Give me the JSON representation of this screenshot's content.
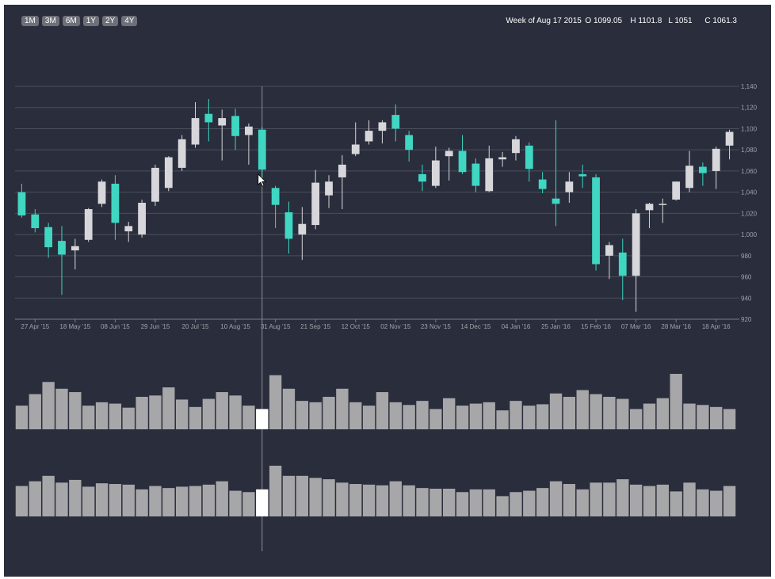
{
  "range_buttons": [
    "1M",
    "3M",
    "6M",
    "1Y",
    "2Y",
    "4Y"
  ],
  "readout": {
    "week": "Week of Aug 17 2015",
    "open": "O 1099.05",
    "high": "H 1101.8",
    "low": "L 1051",
    "close": "C 1061.3"
  },
  "colors": {
    "background": "#2a2d3b",
    "up": "#d7d7db",
    "down": "#3fd6c2",
    "grid": "#4b4e5c",
    "volume": "#a7a7a9",
    "highlight": "#ffffff",
    "tick_text": "#a0a2aa"
  },
  "chart_data": [
    {
      "type": "candlestick",
      "x_tick_labels": [
        "27 Apr '15",
        "18 May '15",
        "08 Jun '15",
        "29 Jun '15",
        "20 Jul '15",
        "10 Aug '15",
        "31 Aug '15",
        "21 Sep '15",
        "12 Oct '15",
        "02 Nov '15",
        "23 Nov '15",
        "14 Dec '15",
        "04 Jan '16",
        "25 Jan '16",
        "15 Feb '16",
        "07 Mar '16",
        "28 Mar '16",
        "18 Apr '16"
      ],
      "y_ticks": [
        920,
        940,
        960,
        980,
        1000,
        1020,
        1040,
        1060,
        1080,
        1100,
        1120,
        1140
      ],
      "ylim": [
        920,
        1140
      ],
      "grid": true,
      "crosshair_index": 18,
      "candles": [
        {
          "o": 1040,
          "h": 1048,
          "l": 1016,
          "c": 1018
        },
        {
          "o": 1019,
          "h": 1024,
          "l": 1002,
          "c": 1006
        },
        {
          "o": 1007,
          "h": 1011,
          "l": 978,
          "c": 988
        },
        {
          "o": 994,
          "h": 1008,
          "l": 943,
          "c": 981
        },
        {
          "o": 985,
          "h": 996,
          "l": 967,
          "c": 989
        },
        {
          "o": 995,
          "h": 1025,
          "l": 993,
          "c": 1024
        },
        {
          "o": 1029,
          "h": 1052,
          "l": 1026,
          "c": 1050
        },
        {
          "o": 1048,
          "h": 1056,
          "l": 995,
          "c": 1011
        },
        {
          "o": 1003,
          "h": 1012,
          "l": 993,
          "c": 1008
        },
        {
          "o": 1000,
          "h": 1033,
          "l": 997,
          "c": 1030
        },
        {
          "o": 1031,
          "h": 1066,
          "l": 1027,
          "c": 1063
        },
        {
          "o": 1044,
          "h": 1074,
          "l": 1041,
          "c": 1073
        },
        {
          "o": 1063,
          "h": 1094,
          "l": 1060,
          "c": 1090
        },
        {
          "o": 1085,
          "h": 1125,
          "l": 1082,
          "c": 1110
        },
        {
          "o": 1114,
          "h": 1128,
          "l": 1088,
          "c": 1106
        },
        {
          "o": 1103,
          "h": 1118,
          "l": 1070,
          "c": 1110
        },
        {
          "o": 1112,
          "h": 1119,
          "l": 1080,
          "c": 1093
        },
        {
          "o": 1094,
          "h": 1105,
          "l": 1066,
          "c": 1102
        },
        {
          "o": 1099.05,
          "h": 1101.8,
          "l": 1051,
          "c": 1061.3
        },
        {
          "o": 1044,
          "h": 1046,
          "l": 1006,
          "c": 1028
        },
        {
          "o": 1021,
          "h": 1031,
          "l": 982,
          "c": 996
        },
        {
          "o": 1000,
          "h": 1026,
          "l": 976,
          "c": 1010
        },
        {
          "o": 1009,
          "h": 1061,
          "l": 1005,
          "c": 1049
        },
        {
          "o": 1037,
          "h": 1056,
          "l": 1025,
          "c": 1050
        },
        {
          "o": 1054,
          "h": 1075,
          "l": 1024,
          "c": 1066
        },
        {
          "o": 1076,
          "h": 1106,
          "l": 1074,
          "c": 1085
        },
        {
          "o": 1088,
          "h": 1108,
          "l": 1085,
          "c": 1098
        },
        {
          "o": 1098,
          "h": 1108,
          "l": 1086,
          "c": 1106
        },
        {
          "o": 1113,
          "h": 1123,
          "l": 1088,
          "c": 1100
        },
        {
          "o": 1094,
          "h": 1098,
          "l": 1069,
          "c": 1080
        },
        {
          "o": 1057,
          "h": 1066,
          "l": 1041,
          "c": 1050
        },
        {
          "o": 1046,
          "h": 1083,
          "l": 1044,
          "c": 1070
        },
        {
          "o": 1074,
          "h": 1082,
          "l": 1051,
          "c": 1079
        },
        {
          "o": 1079,
          "h": 1094,
          "l": 1057,
          "c": 1059
        },
        {
          "o": 1067,
          "h": 1072,
          "l": 1040,
          "c": 1046
        },
        {
          "o": 1041,
          "h": 1084,
          "l": 1040,
          "c": 1072
        },
        {
          "o": 1071,
          "h": 1078,
          "l": 1064,
          "c": 1073
        },
        {
          "o": 1077,
          "h": 1093,
          "l": 1070,
          "c": 1090
        },
        {
          "o": 1084,
          "h": 1087,
          "l": 1050,
          "c": 1062
        },
        {
          "o": 1052,
          "h": 1059,
          "l": 1039,
          "c": 1043
        },
        {
          "o": 1034,
          "h": 1108,
          "l": 1008,
          "c": 1029
        },
        {
          "o": 1040,
          "h": 1059,
          "l": 1030,
          "c": 1050
        },
        {
          "o": 1057,
          "h": 1066,
          "l": 1044,
          "c": 1055
        },
        {
          "o": 1054,
          "h": 1057,
          "l": 966,
          "c": 972
        },
        {
          "o": 980,
          "h": 993,
          "l": 958,
          "c": 990
        },
        {
          "o": 983,
          "h": 996,
          "l": 938,
          "c": 961
        },
        {
          "o": 961,
          "h": 1024,
          "l": 927,
          "c": 1020
        },
        {
          "o": 1023,
          "h": 1030,
          "l": 1006,
          "c": 1029
        },
        {
          "o": 1029,
          "h": 1034,
          "l": 1011,
          "c": 1029
        },
        {
          "o": 1033,
          "h": 1050,
          "l": 1032,
          "c": 1050
        },
        {
          "o": 1044,
          "h": 1079,
          "l": 1040,
          "c": 1065
        },
        {
          "o": 1064,
          "h": 1068,
          "l": 1046,
          "c": 1058
        },
        {
          "o": 1060,
          "h": 1083,
          "l": 1043,
          "c": 1081
        },
        {
          "o": 1084,
          "h": 1099,
          "l": 1071,
          "c": 1097
        }
      ]
    },
    {
      "type": "bar",
      "name": "volume-upper",
      "highlight_index": 18,
      "values": [
        35,
        52,
        70,
        60,
        55,
        35,
        40,
        38,
        32,
        48,
        50,
        62,
        44,
        33,
        45,
        55,
        50,
        35,
        30,
        80,
        60,
        42,
        40,
        48,
        60,
        40,
        35,
        55,
        40,
        36,
        42,
        30,
        46,
        35,
        38,
        40,
        28,
        42,
        35,
        37,
        53,
        48,
        58,
        52,
        48,
        45,
        30,
        38,
        46,
        82,
        38,
        36,
        33,
        30
      ]
    },
    {
      "type": "bar",
      "name": "volume-lower",
      "highlight_index": 18,
      "values": [
        45,
        52,
        60,
        50,
        54,
        44,
        49,
        48,
        47,
        40,
        45,
        42,
        44,
        45,
        47,
        52,
        38,
        36,
        40,
        75,
        60,
        60,
        57,
        55,
        50,
        48,
        47,
        46,
        52,
        46,
        42,
        41,
        41,
        36,
        40,
        40,
        30,
        36,
        38,
        42,
        52,
        48,
        40,
        50,
        50,
        55,
        47,
        45,
        47,
        37,
        50,
        40,
        38,
        45
      ]
    }
  ]
}
